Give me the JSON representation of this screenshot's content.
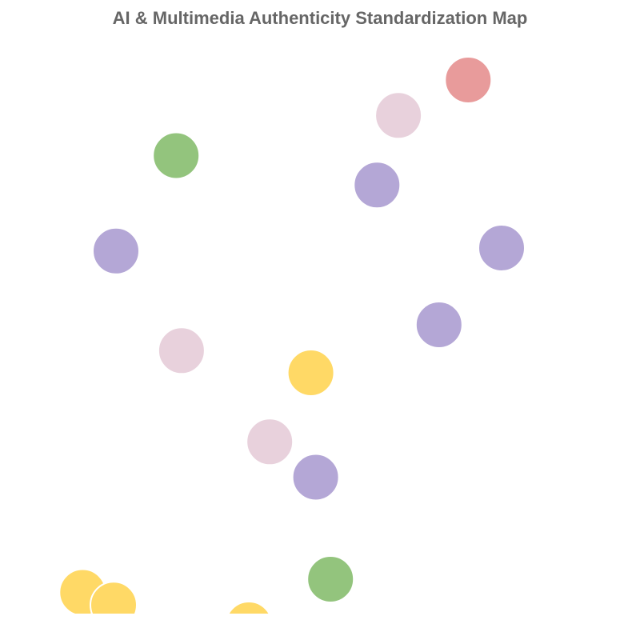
{
  "title": "AI & Multimedia Authenticity Standardization Map",
  "colors": {
    "title": "#666666",
    "background": "#ffffff",
    "point_stroke": "#ffffff"
  },
  "chart_data": {
    "type": "scatter",
    "title": "AI & Multimedia Authenticity Standardization Map",
    "xlabel": "",
    "ylabel": "",
    "xlim": [
      0,
      100
    ],
    "ylim": [
      0,
      100
    ],
    "grid": false,
    "axes_visible": false,
    "legend": "none",
    "points": [
      {
        "x": 74.4,
        "y": 92.0,
        "color": "#e89b9b"
      },
      {
        "x": 62.7,
        "y": 86.1,
        "color": "#e8d1dc"
      },
      {
        "x": 25.4,
        "y": 79.4,
        "color": "#93c47d"
      },
      {
        "x": 59.1,
        "y": 74.5,
        "color": "#b4a7d6"
      },
      {
        "x": 15.3,
        "y": 63.5,
        "color": "#b4a7d6"
      },
      {
        "x": 80.0,
        "y": 64.0,
        "color": "#b4a7d6"
      },
      {
        "x": 69.5,
        "y": 51.2,
        "color": "#b4a7d6"
      },
      {
        "x": 26.3,
        "y": 46.9,
        "color": "#e8d1dc"
      },
      {
        "x": 48.0,
        "y": 43.2,
        "color": "#ffd966"
      },
      {
        "x": 41.1,
        "y": 31.7,
        "color": "#e8d1dc"
      },
      {
        "x": 48.8,
        "y": 25.8,
        "color": "#b4a7d6"
      },
      {
        "x": 51.3,
        "y": 8.8,
        "color": "#93c47d"
      },
      {
        "x": 9.7,
        "y": 6.6,
        "color": "#ffd966"
      },
      {
        "x": 14.9,
        "y": 4.5,
        "color": "#ffd966"
      },
      {
        "x": 37.6,
        "y": 1.2,
        "color": "#ffd966"
      }
    ]
  }
}
